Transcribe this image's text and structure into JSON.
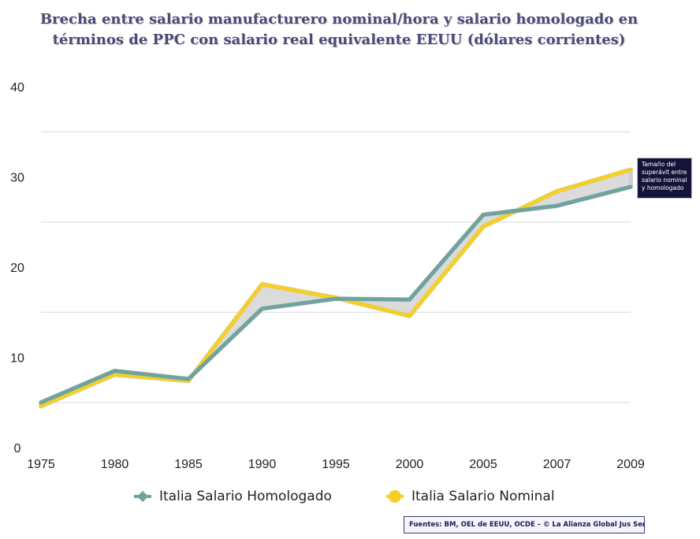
{
  "title": "Brecha entre salario manufacturero nominal/hora y salario homologado en términos de PPC con salario real equivalente EEUU (dólares corrientes)",
  "source_note": "Fuentes: BM, OEL de EEUU, OCDE – © La Alianza Global Jus Semper",
  "annotation": "Tamaño del superávit entre salario nominal y homologado",
  "chart_data": {
    "type": "line",
    "title": "Brecha entre salario manufacturero nominal/hora y salario homologado en términos de PPC con salario real equivalente EEUU (dólares corrientes)",
    "categories": [
      "1975",
      "1980",
      "1985",
      "1990",
      "1995",
      "2000",
      "2005",
      "2007",
      "2009"
    ],
    "y_ticks": [
      "0",
      "10",
      "20",
      "30",
      "40"
    ],
    "ylim": [
      0,
      40
    ],
    "grid": true,
    "legend_position": "bottom",
    "xlabel": "",
    "ylabel": "",
    "series": [
      {
        "name": "Italia Salario Homologado",
        "color": "#6fa3a0",
        "marker": "diamond",
        "values": [
          5.0,
          8.5,
          7.6,
          15.4,
          16.5,
          16.4,
          25.8,
          26.8,
          28.9
        ]
      },
      {
        "name": "Italia Salario Nominal",
        "color": "#f4d027",
        "marker": "circle",
        "values": [
          4.6,
          8.1,
          7.4,
          18.1,
          16.6,
          14.6,
          24.5,
          28.4,
          30.8
        ]
      }
    ],
    "shaded_gap_color": "#cfcfcf"
  }
}
